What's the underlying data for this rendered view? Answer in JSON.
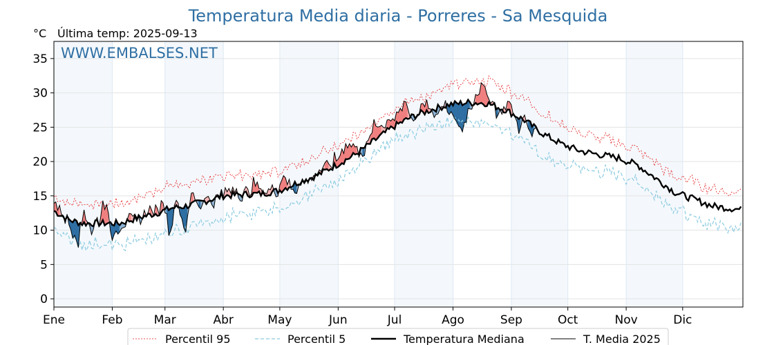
{
  "chart_data": {
    "type": "line",
    "title": "Temperatura Media diaria - Porreres - Sa Mesquida",
    "unit_label": "°C",
    "last_temp": "Última temp: 2025-09-13",
    "watermark": "WWW.EMBALSES.NET",
    "ylim": [
      -1.2,
      37.5
    ],
    "yticks": [
      0,
      5,
      10,
      15,
      20,
      25,
      30,
      35
    ],
    "xlim": [
      0,
      366
    ],
    "months": [
      {
        "label": "Ene",
        "start": 0,
        "end": 31
      },
      {
        "label": "Feb",
        "start": 31,
        "end": 59
      },
      {
        "label": "Mar",
        "start": 59,
        "end": 90
      },
      {
        "label": "Abr",
        "start": 90,
        "end": 120
      },
      {
        "label": "May",
        "start": 120,
        "end": 151
      },
      {
        "label": "Jun",
        "start": 151,
        "end": 181
      },
      {
        "label": "Jul",
        "start": 181,
        "end": 212
      },
      {
        "label": "Ago",
        "start": 212,
        "end": 243
      },
      {
        "label": "Sep",
        "start": 243,
        "end": 273
      },
      {
        "label": "Oct",
        "start": 273,
        "end": 304
      },
      {
        "label": "Nov",
        "start": 304,
        "end": 334
      },
      {
        "label": "Dic",
        "start": 334,
        "end": 365
      }
    ],
    "shaded_months": [
      0,
      2,
      4,
      6,
      8,
      10
    ],
    "grid": true,
    "legend_position": "bottom",
    "colors": {
      "p95": "#e31a1c",
      "p5": "#8ccbe0",
      "median": "#000000",
      "current": "#000000",
      "above": "#f08080",
      "below": "#2f6fa3",
      "above_light": "#f7b6b6",
      "below_light": "#8fb3d3",
      "shade": "#f4f8fc"
    },
    "series": {
      "median_anchors": [
        [
          0,
          12.8
        ],
        [
          8,
          11.5
        ],
        [
          15,
          11
        ],
        [
          25,
          11
        ],
        [
          35,
          11
        ],
        [
          45,
          11.8
        ],
        [
          55,
          12.5
        ],
        [
          62,
          13.2
        ],
        [
          70,
          13.5
        ],
        [
          80,
          14.2
        ],
        [
          90,
          15
        ],
        [
          100,
          15.2
        ],
        [
          110,
          15.3
        ],
        [
          120,
          15.8
        ],
        [
          130,
          17
        ],
        [
          140,
          18
        ],
        [
          150,
          19.5
        ],
        [
          160,
          21
        ],
        [
          170,
          23
        ],
        [
          180,
          25
        ],
        [
          190,
          26.5
        ],
        [
          200,
          27.5
        ],
        [
          210,
          28.3
        ],
        [
          220,
          28.6
        ],
        [
          230,
          28.5
        ],
        [
          240,
          27.5
        ],
        [
          250,
          26
        ],
        [
          260,
          24
        ],
        [
          270,
          22.5
        ],
        [
          280,
          21.5
        ],
        [
          290,
          21
        ],
        [
          300,
          20.5
        ],
        [
          310,
          19.5
        ],
        [
          320,
          17.5
        ],
        [
          330,
          15.5
        ],
        [
          340,
          14.5
        ],
        [
          350,
          13.5
        ],
        [
          365,
          13
        ]
      ],
      "median_noise": 0.5,
      "p95_offset": [
        [
          0,
          2.3
        ],
        [
          60,
          3.0
        ],
        [
          150,
          2.5
        ],
        [
          200,
          2.0
        ],
        [
          230,
          3.2
        ],
        [
          300,
          2.0
        ],
        [
          365,
          2.3
        ]
      ],
      "p5_offset": [
        [
          0,
          2.5
        ],
        [
          60,
          3.2
        ],
        [
          150,
          1.8
        ],
        [
          200,
          2.0
        ],
        [
          250,
          3.0
        ],
        [
          300,
          2.0
        ],
        [
          365,
          2.5
        ]
      ],
      "current_end_day": 256,
      "current_deviation": [
        [
          0,
          1.5
        ],
        [
          5,
          0.5
        ],
        [
          10,
          -1.5
        ],
        [
          13,
          -2.5
        ],
        [
          16,
          2.0
        ],
        [
          20,
          -1.0
        ],
        [
          24,
          0.5
        ],
        [
          26,
          2.5
        ],
        [
          28,
          3.5
        ],
        [
          30,
          -2.0
        ],
        [
          35,
          -0.5
        ],
        [
          40,
          0.5
        ],
        [
          45,
          -0.5
        ],
        [
          50,
          0.8
        ],
        [
          55,
          0.5
        ],
        [
          58,
          1.5
        ],
        [
          61,
          -3.0
        ],
        [
          63,
          -2.0
        ],
        [
          65,
          1.5
        ],
        [
          70,
          -3.5
        ],
        [
          73,
          1.5
        ],
        [
          78,
          -1.2
        ],
        [
          80,
          1.0
        ],
        [
          85,
          -0.5
        ],
        [
          90,
          0.5
        ],
        [
          96,
          1.0
        ],
        [
          100,
          -0.5
        ],
        [
          106,
          1.5
        ],
        [
          110,
          0.3
        ],
        [
          115,
          0.8
        ],
        [
          118,
          -0.5
        ],
        [
          122,
          2.5
        ],
        [
          125,
          0.5
        ],
        [
          128,
          -1.5
        ],
        [
          131,
          0.8
        ],
        [
          135,
          -0.3
        ],
        [
          140,
          0.5
        ],
        [
          146,
          0.5
        ],
        [
          150,
          1.0
        ],
        [
          155,
          2.5
        ],
        [
          160,
          1.0
        ],
        [
          165,
          -1.0
        ],
        [
          170,
          2.0
        ],
        [
          176,
          1.0
        ],
        [
          180,
          1.5
        ],
        [
          185,
          2.0
        ],
        [
          188,
          1.5
        ],
        [
          190,
          -1.0
        ],
        [
          195,
          1.0
        ],
        [
          198,
          1.5
        ],
        [
          203,
          -1.0
        ],
        [
          208,
          0.3
        ],
        [
          210,
          -1.5
        ],
        [
          214,
          -2.5
        ],
        [
          216,
          -4.0
        ],
        [
          220,
          -1.5
        ],
        [
          224,
          1.5
        ],
        [
          228,
          2.5
        ],
        [
          232,
          0.8
        ],
        [
          236,
          -1.0
        ],
        [
          240,
          1.0
        ],
        [
          243,
          1.0
        ],
        [
          247,
          -1.5
        ],
        [
          250,
          0.5
        ],
        [
          253,
          -2.0
        ],
        [
          256,
          0.0
        ]
      ],
      "current_noise": 0.8
    },
    "legend": [
      {
        "key": "p95",
        "label": "Percentil 95"
      },
      {
        "key": "p5",
        "label": "Percentil 5"
      },
      {
        "key": "median",
        "label": "Temperatura Mediana"
      },
      {
        "key": "current",
        "label": "T. Media 2025"
      }
    ]
  }
}
